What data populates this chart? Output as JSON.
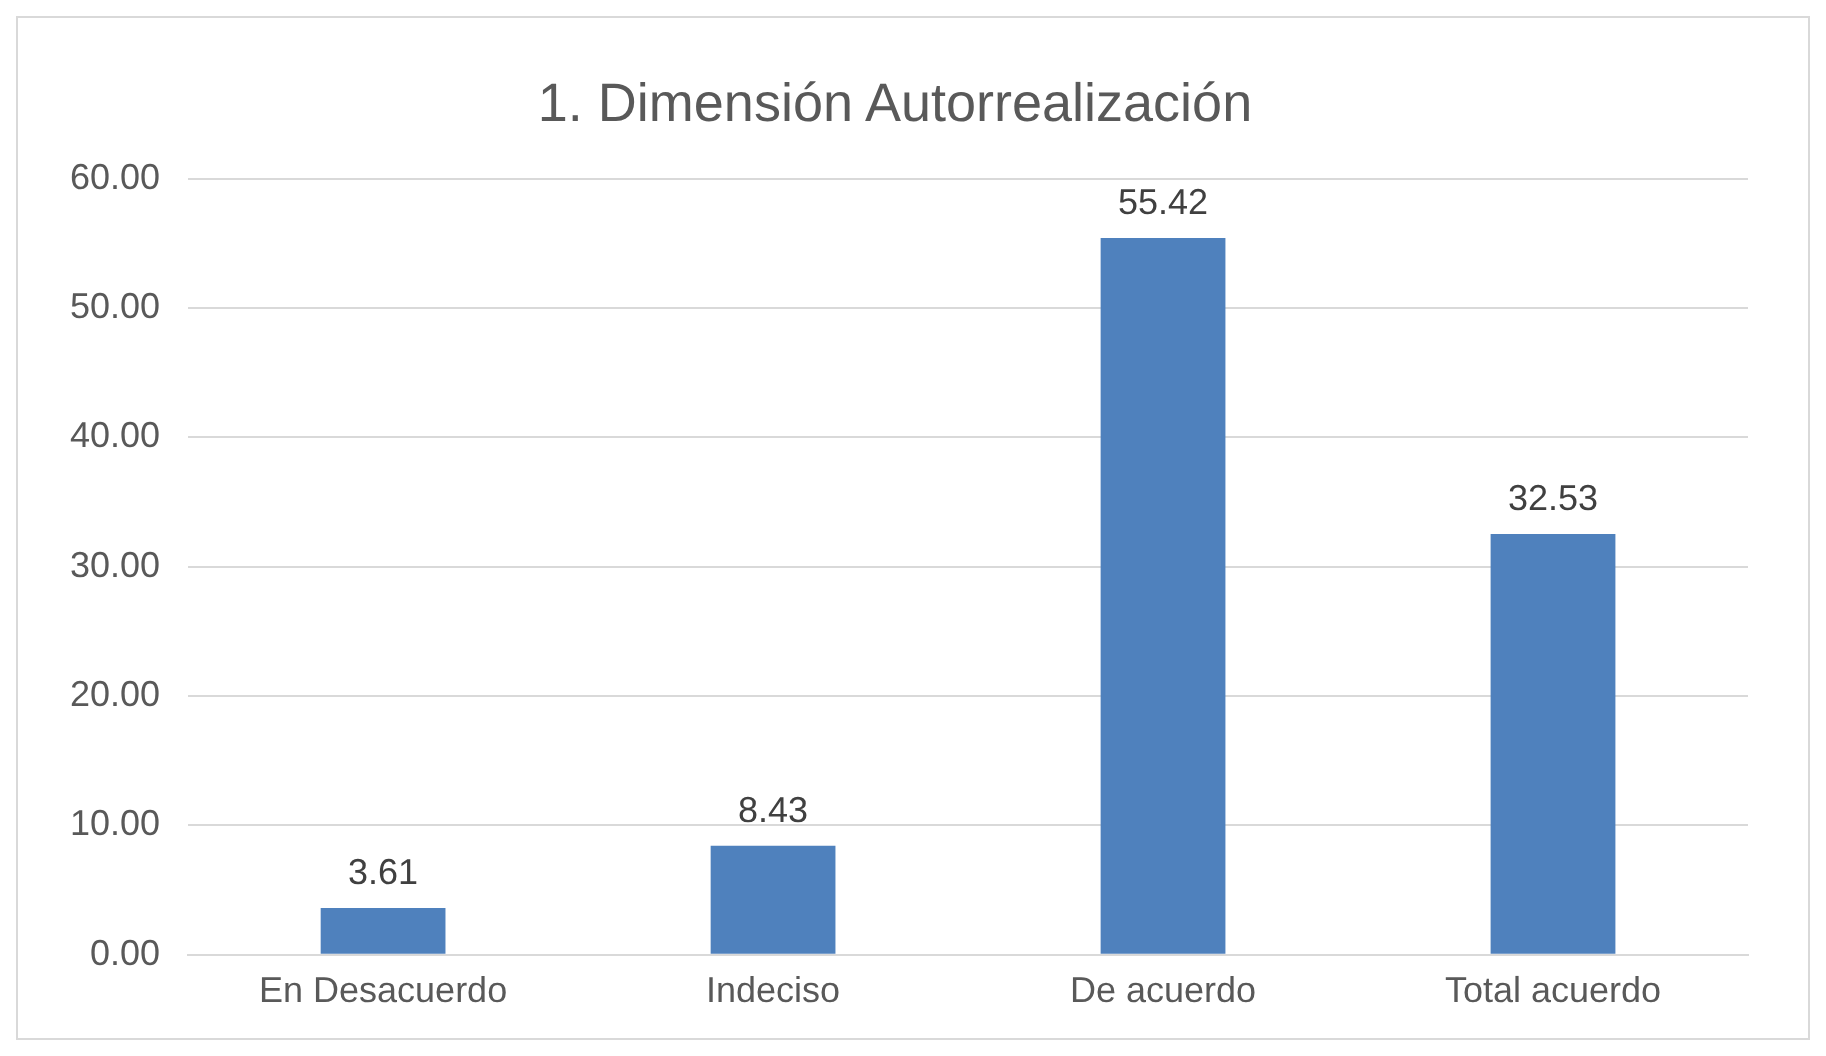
{
  "chart_data": {
    "type": "bar",
    "title": "1. Dimensión Autorrealización",
    "categories": [
      "En Desacuerdo",
      "Indeciso",
      "De acuerdo",
      "Total acuerdo"
    ],
    "values": [
      3.61,
      8.43,
      55.42,
      32.53
    ],
    "color": "#4f81bd",
    "ylim": [
      0,
      60
    ],
    "yticks": [
      {
        "value": 0,
        "label": "0.00"
      },
      {
        "value": 10,
        "label": "10.00"
      },
      {
        "value": 20,
        "label": "20.00"
      },
      {
        "value": 30,
        "label": "30.00"
      },
      {
        "value": 40,
        "label": "40.00"
      },
      {
        "value": 50,
        "label": "50.00"
      },
      {
        "value": 60,
        "label": "60.00"
      }
    ],
    "grid": "y",
    "data_labels": true
  }
}
